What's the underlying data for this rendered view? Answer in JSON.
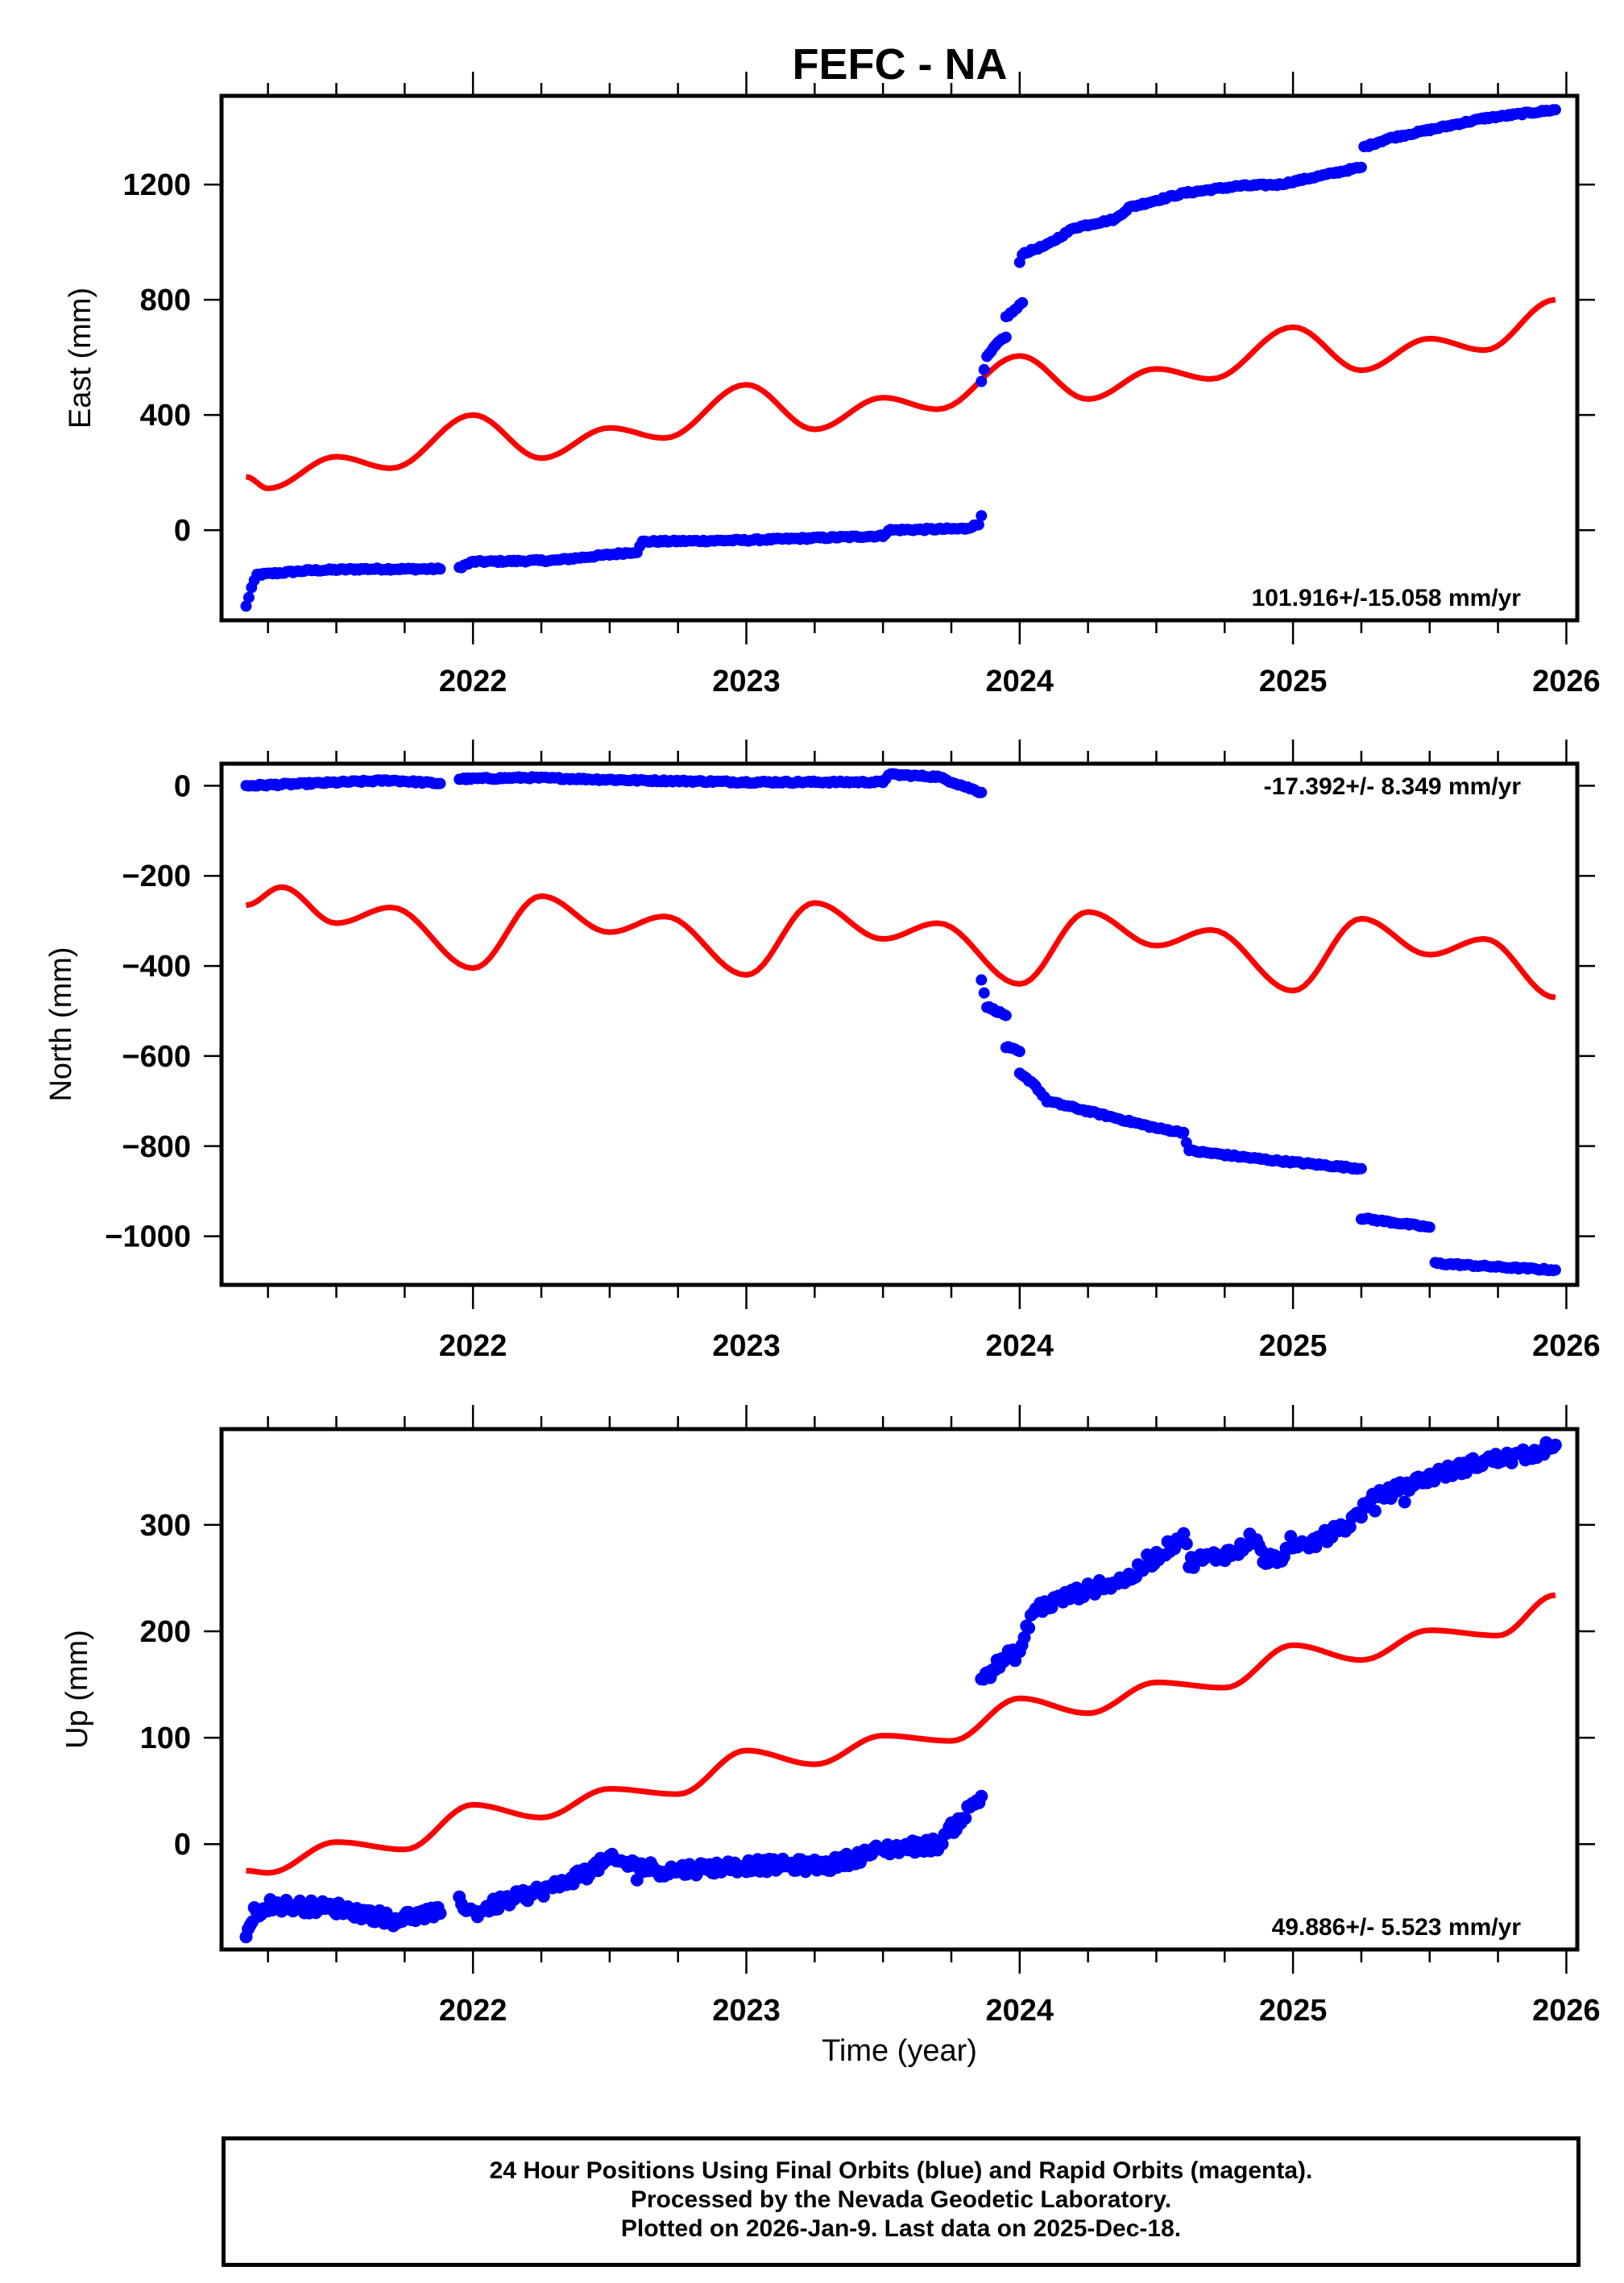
{
  "title": "FEFC - NA",
  "colors": {
    "final_orbits": "#0000ff",
    "model": "#ff0000",
    "axis": "#000000"
  },
  "footer": {
    "lines": [
      "24 Hour Positions Using Final Orbits (blue) and Rapid Orbits (magenta).",
      "Processed by the Nevada Geodetic Laboratory.",
      "Plotted on 2026-Jan-9. Last data on 2025-Dec-18."
    ]
  },
  "chart_data": [
    {
      "type": "scatter",
      "title": "FEFC - NA",
      "component": "East",
      "ylabel": "East (mm)",
      "xlabel": "",
      "xlim": [
        2021.08,
        2026.04
      ],
      "ylim": [
        -313,
        1508
      ],
      "xticks": [
        2022,
        2023,
        2024,
        2025,
        2026
      ],
      "xtick_labels": [
        "2022",
        "2023",
        "2024",
        "2025",
        "2026"
      ],
      "x_minor_step": 0.25,
      "yticks": [
        0,
        400,
        800,
        1200
      ],
      "ytick_labels": [
        "0",
        "400",
        "800",
        "1200"
      ],
      "grid": false,
      "rate_text": "101.916+/-15.058 mm/yr",
      "rate_position": "bottom-right",
      "series": [
        {
          "name": "Final Orbits",
          "kind": "points",
          "segments": [
            [
              [
                2021.17,
                -265
              ],
              [
                2021.19,
                -200
              ],
              [
                2021.21,
                -155
              ],
              [
                2021.4,
                -140
              ],
              [
                2021.6,
                -135
              ],
              [
                2021.88,
                -135
              ]
            ],
            [
              [
                2021.95,
                -130
              ],
              [
                2022.0,
                -110
              ],
              [
                2022.3,
                -105
              ],
              [
                2022.55,
                -80
              ],
              [
                2022.6,
                -75
              ],
              [
                2022.62,
                -40
              ],
              [
                2023.0,
                -35
              ],
              [
                2023.5,
                -20
              ],
              [
                2023.52,
                0
              ],
              [
                2023.8,
                5
              ],
              [
                2023.85,
                20
              ],
              [
                2023.86,
                50
              ]
            ],
            [
              [
                2023.86,
                520
              ],
              [
                2023.88,
                600
              ],
              [
                2023.92,
                650
              ],
              [
                2023.95,
                670
              ]
            ],
            [
              [
                2023.95,
                740
              ],
              [
                2023.99,
                770
              ],
              [
                2024.01,
                790
              ]
            ],
            [
              [
                2024.0,
                930
              ],
              [
                2024.01,
                960
              ],
              [
                2024.1,
                990
              ],
              [
                2024.15,
                1020
              ],
              [
                2024.2,
                1050
              ],
              [
                2024.35,
                1080
              ],
              [
                2024.4,
                1120
              ],
              [
                2024.6,
                1170
              ],
              [
                2024.8,
                1195
              ],
              [
                2024.95,
                1200
              ],
              [
                2025.25,
                1260
              ]
            ],
            [
              [
                2025.26,
                1330
              ],
              [
                2025.35,
                1360
              ],
              [
                2025.45,
                1380
              ],
              [
                2025.55,
                1400
              ],
              [
                2025.7,
                1430
              ],
              [
                2025.96,
                1460
              ]
            ]
          ]
        },
        {
          "name": "Model",
          "kind": "line",
          "offset": 180,
          "rate": 110,
          "t0": 2021.17,
          "annual_amp": 80,
          "annual_phase": 2021.98,
          "semi_amp": 25,
          "semi_phase": 2021.48,
          "break": {
            "at": 2023.86,
            "shift": 0
          },
          "x_range": [
            2021.17,
            2025.96
          ],
          "samples": [
            [
              2021.17,
              185
            ],
            [
              2021.25,
              145
            ],
            [
              2021.5,
              255
            ],
            [
              2021.7,
              215
            ],
            [
              2022.0,
              400
            ],
            [
              2022.25,
              250
            ],
            [
              2022.5,
              355
            ],
            [
              2022.7,
              320
            ],
            [
              2023.0,
              505
            ],
            [
              2023.25,
              350
            ],
            [
              2023.5,
              460
            ],
            [
              2023.7,
              420
            ],
            [
              2024.0,
              605
            ],
            [
              2024.25,
              455
            ],
            [
              2024.5,
              560
            ],
            [
              2024.7,
              525
            ],
            [
              2025.0,
              705
            ],
            [
              2025.25,
              555
            ],
            [
              2025.5,
              665
            ],
            [
              2025.7,
              625
            ],
            [
              2025.96,
              800
            ]
          ]
        }
      ]
    },
    {
      "type": "scatter",
      "component": "North",
      "ylabel": "North (mm)",
      "xlabel": "",
      "xlim": [
        2021.08,
        2026.04
      ],
      "ylim": [
        -1108,
        49
      ],
      "xticks": [
        2022,
        2023,
        2024,
        2025,
        2026
      ],
      "xtick_labels": [
        "2022",
        "2023",
        "2024",
        "2025",
        "2026"
      ],
      "x_minor_step": 0.25,
      "yticks": [
        -1000,
        -800,
        -600,
        -400,
        -200,
        0
      ],
      "ytick_labels": [
        "−1000",
        "−800",
        "−600",
        "−400",
        "−200",
        "0"
      ],
      "grid": false,
      "rate_text": "-17.392+/- 8.349 mm/yr",
      "rate_position": "top-right",
      "series": [
        {
          "name": "Final Orbits",
          "kind": "points",
          "segments": [
            [
              [
                2021.17,
                0
              ],
              [
                2021.4,
                5
              ],
              [
                2021.7,
                12
              ],
              [
                2021.88,
                5
              ]
            ],
            [
              [
                2021.95,
                15
              ],
              [
                2022.2,
                18
              ],
              [
                2022.6,
                12
              ],
              [
                2023.0,
                8
              ],
              [
                2023.5,
                8
              ],
              [
                2023.52,
                25
              ],
              [
                2023.7,
                20
              ],
              [
                2023.86,
                -15
              ]
            ],
            [
              [
                2023.86,
                -430
              ],
              [
                2023.88,
                -490
              ],
              [
                2023.95,
                -510
              ]
            ],
            [
              [
                2023.95,
                -580
              ],
              [
                2024.0,
                -590
              ]
            ],
            [
              [
                2024.0,
                -640
              ],
              [
                2024.05,
                -660
              ],
              [
                2024.1,
                -700
              ],
              [
                2024.3,
                -730
              ],
              [
                2024.5,
                -760
              ],
              [
                2024.6,
                -770
              ],
              [
                2024.62,
                -810
              ],
              [
                2024.9,
                -830
              ],
              [
                2025.25,
                -850
              ]
            ],
            [
              [
                2025.25,
                -960
              ],
              [
                2025.5,
                -980
              ]
            ],
            [
              [
                2025.52,
                -1060
              ],
              [
                2025.8,
                -1070
              ],
              [
                2025.96,
                -1075
              ]
            ]
          ]
        },
        {
          "name": "Model",
          "kind": "line",
          "x_range": [
            2021.17,
            2025.96
          ],
          "samples": [
            [
              2021.17,
              -265
            ],
            [
              2021.3,
              -225
            ],
            [
              2021.5,
              -305
            ],
            [
              2021.7,
              -270
            ],
            [
              2022.0,
              -405
            ],
            [
              2022.25,
              -245
            ],
            [
              2022.5,
              -325
            ],
            [
              2022.7,
              -290
            ],
            [
              2023.0,
              -420
            ],
            [
              2023.25,
              -260
            ],
            [
              2023.5,
              -340
            ],
            [
              2023.7,
              -305
            ],
            [
              2024.0,
              -440
            ],
            [
              2024.25,
              -280
            ],
            [
              2024.5,
              -355
            ],
            [
              2024.7,
              -320
            ],
            [
              2025.0,
              -455
            ],
            [
              2025.25,
              -295
            ],
            [
              2025.5,
              -375
            ],
            [
              2025.7,
              -340
            ],
            [
              2025.96,
              -470
            ]
          ]
        }
      ]
    },
    {
      "type": "scatter",
      "component": "Up",
      "ylabel": "Up (mm)",
      "xlabel": "Time (year)",
      "xlim": [
        2021.08,
        2026.04
      ],
      "ylim": [
        -99,
        390
      ],
      "xticks": [
        2022,
        2023,
        2024,
        2025,
        2026
      ],
      "xtick_labels": [
        "2022",
        "2023",
        "2024",
        "2025",
        "2026"
      ],
      "x_minor_step": 0.25,
      "yticks": [
        0,
        100,
        200,
        300
      ],
      "ytick_labels": [
        "0",
        "100",
        "200",
        "300"
      ],
      "grid": false,
      "rate_text": "49.886+/- 5.523 mm/yr",
      "rate_position": "bottom-right",
      "series": [
        {
          "name": "Final Orbits",
          "kind": "points",
          "noise": 6,
          "segments": [
            [
              [
                2021.17,
                -85
              ],
              [
                2021.2,
                -65
              ],
              [
                2021.25,
                -57
              ],
              [
                2021.5,
                -60
              ],
              [
                2021.7,
                -70
              ],
              [
                2021.88,
                -65
              ]
            ],
            [
              [
                2021.95,
                -52
              ],
              [
                2022.0,
                -65
              ],
              [
                2022.1,
                -55
              ],
              [
                2022.3,
                -40
              ],
              [
                2022.5,
                -15
              ],
              [
                2022.7,
                -25
              ],
              [
                2023.0,
                -20
              ],
              [
                2023.3,
                -20
              ],
              [
                2023.5,
                -5
              ],
              [
                2023.7,
                0
              ],
              [
                2023.86,
                45
              ]
            ],
            [
              [
                2023.86,
                155
              ],
              [
                2023.95,
                175
              ],
              [
                2024.0,
                180
              ],
              [
                2024.05,
                220
              ],
              [
                2024.2,
                235
              ],
              [
                2024.4,
                250
              ],
              [
                2024.6,
                290
              ],
              [
                2024.62,
                265
              ],
              [
                2024.8,
                275
              ],
              [
                2024.85,
                290
              ],
              [
                2024.9,
                265
              ],
              [
                2025.05,
                280
              ],
              [
                2025.2,
                300
              ],
              [
                2025.3,
                325
              ],
              [
                2025.5,
                345
              ],
              [
                2025.7,
                360
              ],
              [
                2025.85,
                365
              ],
              [
                2025.96,
                375
              ]
            ]
          ]
        },
        {
          "name": "Model",
          "kind": "line",
          "x_range": [
            2021.17,
            2025.96
          ],
          "samples": [
            [
              2021.17,
              -25
            ],
            [
              2021.25,
              -27
            ],
            [
              2021.5,
              2
            ],
            [
              2021.75,
              -5
            ],
            [
              2022.0,
              37
            ],
            [
              2022.25,
              25
            ],
            [
              2022.5,
              52
            ],
            [
              2022.75,
              47
            ],
            [
              2023.0,
              88
            ],
            [
              2023.25,
              75
            ],
            [
              2023.5,
              102
            ],
            [
              2023.75,
              97
            ],
            [
              2024.0,
              137
            ],
            [
              2024.25,
              123
            ],
            [
              2024.5,
              152
            ],
            [
              2024.75,
              147
            ],
            [
              2025.0,
              187
            ],
            [
              2025.25,
              173
            ],
            [
              2025.5,
              201
            ],
            [
              2025.75,
              196
            ],
            [
              2025.96,
              234
            ]
          ]
        }
      ]
    }
  ]
}
